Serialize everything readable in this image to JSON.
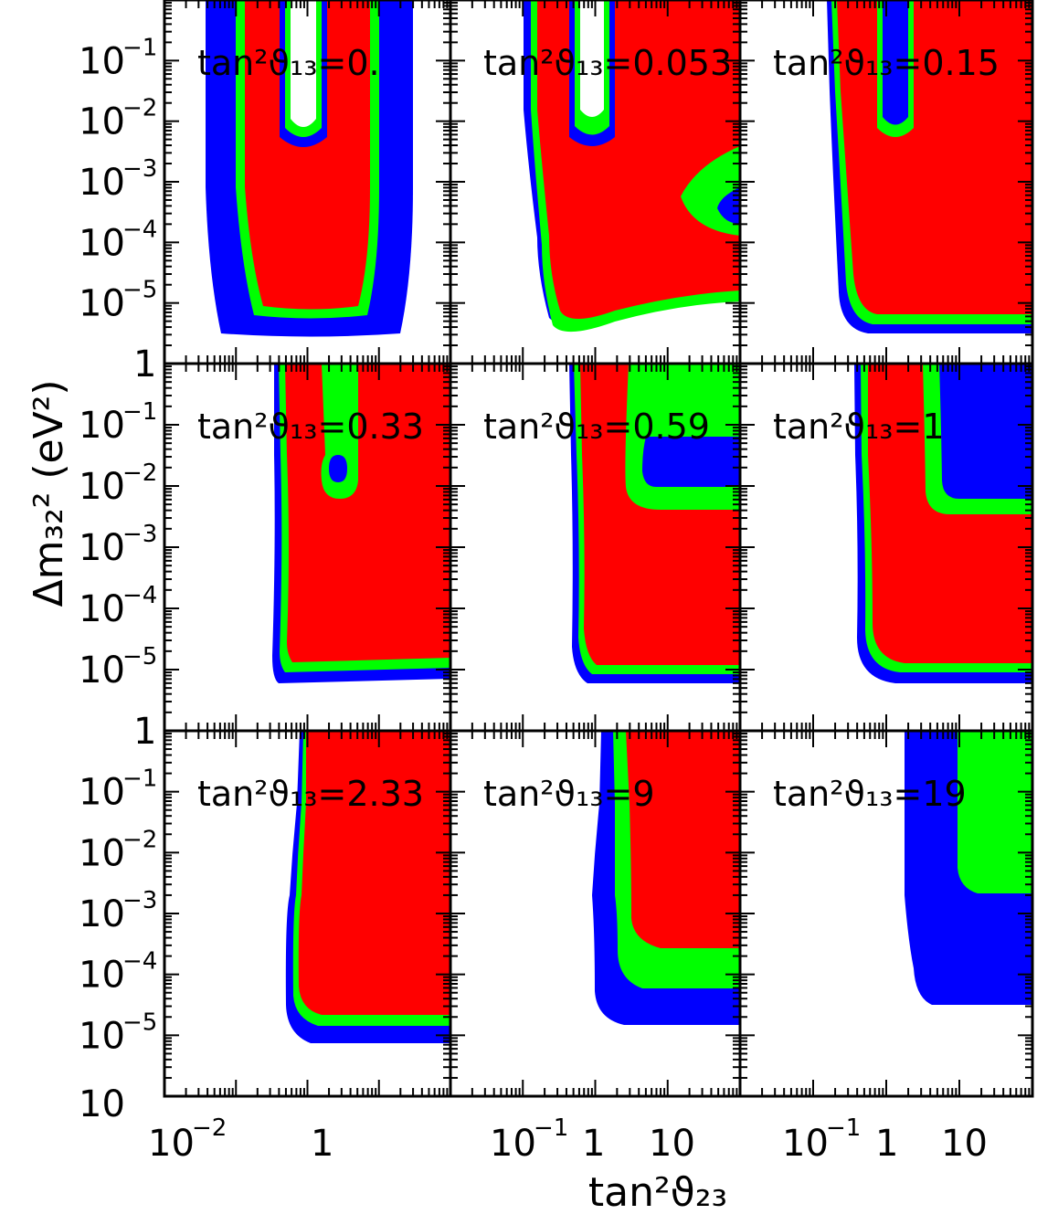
{
  "chart_data": {
    "type": "heatmap",
    "description_kind": "3x3 grid of exclusion-contour panels",
    "xlabel": "tan²ϑ₂₃",
    "ylabel": "Δm₃₂² (eV²)",
    "x_scale": "log",
    "y_scale": "log",
    "ylim": [
      1e-06,
      1
    ],
    "colors": {
      "outer": "#0000ff",
      "middle": "#00ff00",
      "inner": "#ff0000",
      "background": "#ffffff",
      "frame": "#000000"
    },
    "y_ticks": [
      {
        "base": "10",
        "exp": "−1"
      },
      {
        "base": "10",
        "exp": "−2"
      },
      {
        "base": "10",
        "exp": "−3"
      },
      {
        "base": "10",
        "exp": "−4"
      },
      {
        "base": "10",
        "exp": "−5"
      }
    ],
    "y_tick_stub": "1",
    "y_bottom_tick": {
      "base": "10",
      "exp": "−5"
    },
    "x_ticks": [
      [
        {
          "base": "10",
          "exp": "−2"
        },
        {
          "base": "1",
          "exp": ""
        }
      ],
      [
        {
          "base": "10",
          "exp": "−1"
        },
        {
          "base": "1",
          "exp": ""
        },
        {
          "base": "10",
          "exp": ""
        }
      ],
      [
        {
          "base": "10",
          "exp": "−1"
        },
        {
          "base": "1",
          "exp": ""
        },
        {
          "base": "10",
          "exp": ""
        }
      ]
    ],
    "panels": [
      {
        "tan2_theta13": "0."
      },
      {
        "tan2_theta13": "0.053"
      },
      {
        "tan2_theta13": "0.15"
      },
      {
        "tan2_theta13": "0.33"
      },
      {
        "tan2_theta13": "0.59"
      },
      {
        "tan2_theta13": "1"
      },
      {
        "tan2_theta13": "2.33"
      },
      {
        "tan2_theta13": "9"
      },
      {
        "tan2_theta13": "19"
      }
    ],
    "panel_label_prefix": "tan²ϑ₁₃="
  }
}
